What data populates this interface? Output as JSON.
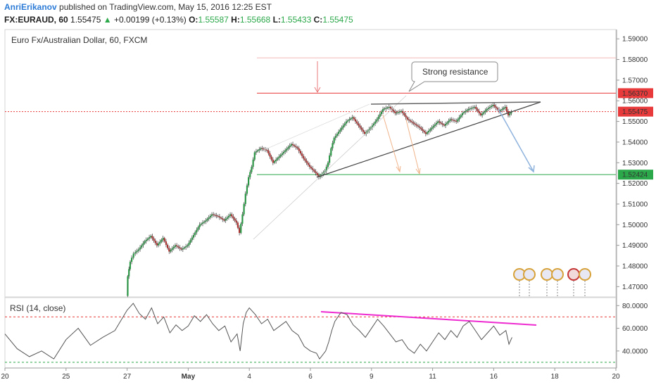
{
  "header": {
    "author": "AnriErikanov",
    "published": "published on TradingView.com, May 15, 2016 12:25 EST",
    "symbol": "FX:EURAUD, 60",
    "last": "1.55475",
    "change": "+0.00199 (+0.13%)",
    "o_label": "O:",
    "o": "1.55587",
    "h_label": "H:",
    "h": "1.55668",
    "l_label": "L:",
    "l": "1.55433",
    "c_label": "C:",
    "c": "1.55475"
  },
  "chart_data": [
    {
      "type": "candlestick",
      "title": "Euro Fx/Australian Dollar, 60, FXCM",
      "ylim": [
        1.465,
        1.5945
      ],
      "yticks": [
        "1.47000",
        "1.48000",
        "1.49000",
        "1.50000",
        "1.51000",
        "1.52000",
        "1.53000",
        "1.54000",
        "1.55000",
        "1.56000",
        "1.57000",
        "1.58000",
        "1.59000"
      ],
      "x_labels": [
        {
          "day": 24,
          "label": "20"
        },
        {
          "day": 25,
          "label": "25"
        },
        {
          "day": 26,
          "label": "27"
        },
        {
          "day": 27,
          "label": "May"
        },
        {
          "day": 28,
          "label": "4"
        },
        {
          "day": 29,
          "label": "6"
        },
        {
          "day": 30,
          "label": "9"
        },
        {
          "day": 31,
          "label": "11"
        },
        {
          "day": 32,
          "label": "16"
        },
        {
          "day": 33,
          "label": "18"
        },
        {
          "day": 34,
          "label": "20"
        }
      ],
      "price_path": [
        [
          26.0,
          1.4655
        ],
        [
          26.02,
          1.475
        ],
        [
          26.06,
          1.482
        ],
        [
          26.12,
          1.486
        ],
        [
          26.2,
          1.488
        ],
        [
          26.3,
          1.492
        ],
        [
          26.4,
          1.4945
        ],
        [
          26.5,
          1.49
        ],
        [
          26.6,
          1.4935
        ],
        [
          26.7,
          1.487
        ],
        [
          26.8,
          1.49
        ],
        [
          26.9,
          1.488
        ],
        [
          27.0,
          1.49
        ],
        [
          27.1,
          1.495
        ],
        [
          27.2,
          1.5
        ],
        [
          27.3,
          1.502
        ],
        [
          27.4,
          1.505
        ],
        [
          27.5,
          1.504
        ],
        [
          27.6,
          1.502
        ],
        [
          27.7,
          1.505
        ],
        [
          27.8,
          1.501
        ],
        [
          27.85,
          1.496
        ],
        [
          27.9,
          1.505
        ],
        [
          27.95,
          1.515
        ],
        [
          28.0,
          1.523
        ],
        [
          28.05,
          1.528
        ],
        [
          28.1,
          1.535
        ],
        [
          28.2,
          1.537
        ],
        [
          28.3,
          1.536
        ],
        [
          28.4,
          1.53
        ],
        [
          28.5,
          1.533
        ],
        [
          28.6,
          1.536
        ],
        [
          28.7,
          1.539
        ],
        [
          28.8,
          1.537
        ],
        [
          28.9,
          1.532
        ],
        [
          29.0,
          1.528
        ],
        [
          29.1,
          1.525
        ],
        [
          29.15,
          1.523
        ],
        [
          29.25,
          1.526
        ],
        [
          29.3,
          1.53
        ],
        [
          29.35,
          1.537
        ],
        [
          29.4,
          1.542
        ],
        [
          29.5,
          1.546
        ],
        [
          29.6,
          1.55
        ],
        [
          29.7,
          1.552
        ],
        [
          29.8,
          1.548
        ],
        [
          29.9,
          1.544
        ],
        [
          30.0,
          1.547
        ],
        [
          30.1,
          1.551
        ],
        [
          30.2,
          1.556
        ],
        [
          30.3,
          1.557
        ],
        [
          30.4,
          1.554
        ],
        [
          30.5,
          1.555
        ],
        [
          30.6,
          1.551
        ],
        [
          30.7,
          1.549
        ],
        [
          30.8,
          1.547
        ],
        [
          30.9,
          1.544
        ],
        [
          31.0,
          1.547
        ],
        [
          31.1,
          1.55
        ],
        [
          31.2,
          1.548
        ],
        [
          31.3,
          1.551
        ],
        [
          31.4,
          1.55
        ],
        [
          31.5,
          1.554
        ],
        [
          31.6,
          1.556
        ],
        [
          31.7,
          1.557
        ],
        [
          31.8,
          1.553
        ],
        [
          31.9,
          1.556
        ],
        [
          32.0,
          1.558
        ],
        [
          32.1,
          1.555
        ],
        [
          32.2,
          1.557
        ],
        [
          32.25,
          1.553
        ],
        [
          32.3,
          1.5547
        ]
      ],
      "price_lines": [
        {
          "price": "1.56370",
          "color": "#e83a3a"
        },
        {
          "price": "1.55475",
          "color": "#e83a3a"
        },
        {
          "price": "1.52424",
          "color": "#2ba84a"
        }
      ],
      "annotation": "Strong resistance"
    },
    {
      "type": "line",
      "title": "RSI (14, close)",
      "ylim": [
        25,
        87
      ],
      "yticks": [
        "40.0000",
        "60.0000",
        "80.0000"
      ],
      "levels": [
        70,
        30
      ],
      "values": [
        [
          24.0,
          55
        ],
        [
          24.2,
          42
        ],
        [
          24.4,
          35
        ],
        [
          24.6,
          40
        ],
        [
          24.8,
          33
        ],
        [
          25.0,
          50
        ],
        [
          25.2,
          60
        ],
        [
          25.4,
          45
        ],
        [
          25.6,
          52
        ],
        [
          25.8,
          58
        ],
        [
          26.0,
          76
        ],
        [
          26.1,
          82
        ],
        [
          26.2,
          73
        ],
        [
          26.3,
          68
        ],
        [
          26.4,
          78
        ],
        [
          26.5,
          64
        ],
        [
          26.6,
          70
        ],
        [
          26.7,
          56
        ],
        [
          26.8,
          63
        ],
        [
          26.9,
          58
        ],
        [
          27.0,
          62
        ],
        [
          27.1,
          71
        ],
        [
          27.2,
          66
        ],
        [
          27.3,
          72
        ],
        [
          27.4,
          64
        ],
        [
          27.5,
          58
        ],
        [
          27.6,
          62
        ],
        [
          27.7,
          48
        ],
        [
          27.8,
          55
        ],
        [
          27.85,
          40
        ],
        [
          27.9,
          64
        ],
        [
          27.95,
          74
        ],
        [
          28.0,
          78
        ],
        [
          28.1,
          72
        ],
        [
          28.2,
          64
        ],
        [
          28.3,
          68
        ],
        [
          28.4,
          58
        ],
        [
          28.5,
          62
        ],
        [
          28.6,
          66
        ],
        [
          28.7,
          58
        ],
        [
          28.8,
          54
        ],
        [
          28.9,
          44
        ],
        [
          29.0,
          40
        ],
        [
          29.1,
          38
        ],
        [
          29.15,
          33
        ],
        [
          29.25,
          40
        ],
        [
          29.3,
          48
        ],
        [
          29.35,
          58
        ],
        [
          29.4,
          66
        ],
        [
          29.5,
          74
        ],
        [
          29.6,
          72
        ],
        [
          29.7,
          63
        ],
        [
          29.8,
          58
        ],
        [
          29.9,
          52
        ],
        [
          30.0,
          60
        ],
        [
          30.1,
          68
        ],
        [
          30.2,
          62
        ],
        [
          30.3,
          55
        ],
        [
          30.4,
          48
        ],
        [
          30.5,
          50
        ],
        [
          30.6,
          42
        ],
        [
          30.7,
          38
        ],
        [
          30.8,
          46
        ],
        [
          30.9,
          40
        ],
        [
          31.0,
          48
        ],
        [
          31.1,
          56
        ],
        [
          31.2,
          50
        ],
        [
          31.3,
          58
        ],
        [
          31.4,
          52
        ],
        [
          31.5,
          62
        ],
        [
          31.6,
          66
        ],
        [
          31.7,
          58
        ],
        [
          31.8,
          50
        ],
        [
          31.9,
          56
        ],
        [
          32.0,
          62
        ],
        [
          32.1,
          54
        ],
        [
          32.2,
          58
        ],
        [
          32.25,
          46
        ],
        [
          32.3,
          52
        ]
      ]
    }
  ]
}
